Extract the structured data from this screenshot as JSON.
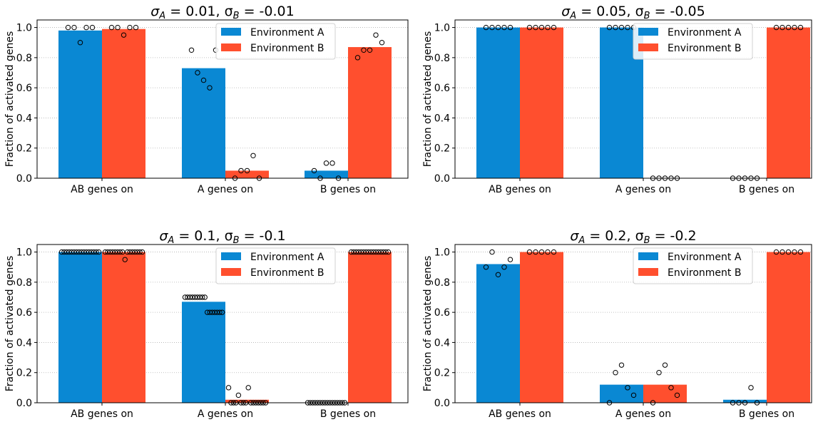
{
  "colors": {
    "env_a": "#0a88d3",
    "env_b": "#ff4f2e",
    "grid": "#b0b0b0"
  },
  "chart_data": [
    {
      "type": "bar",
      "title": {
        "main": "σ",
        "sub_a": "A",
        "mid": " = 0.01, σ",
        "sub_b": "B",
        "end": " = -0.01"
      },
      "ylabel": "Fraction of activated genes",
      "categories": [
        "AB genes on",
        "A genes on",
        "B genes on"
      ],
      "ylim": [
        0,
        1.05
      ],
      "yticks": [
        "0.0",
        "0.2",
        "0.4",
        "0.6",
        "0.8",
        "1.0"
      ],
      "grid": "horizontal-dotted",
      "legend_position": "top-center",
      "series": [
        {
          "name": "Environment A",
          "values": [
            0.98,
            0.73,
            0.05
          ],
          "points": [
            [
              1.0,
              1.0,
              0.9,
              1.0,
              1.0
            ],
            [
              0.85,
              0.7,
              0.65,
              0.6,
              0.85
            ],
            [
              0.05,
              0.0,
              0.1,
              0.1,
              0.0
            ]
          ]
        },
        {
          "name": "Environment B",
          "values": [
            0.99,
            0.05,
            0.87
          ],
          "points": [
            [
              1.0,
              1.0,
              0.95,
              1.0,
              1.0
            ],
            [
              0.0,
              0.05,
              0.05,
              0.15,
              0.0
            ],
            [
              0.8,
              0.85,
              0.85,
              0.95,
              0.9
            ]
          ]
        }
      ]
    },
    {
      "type": "bar",
      "title": {
        "main": "σ",
        "sub_a": "A",
        "mid": " = 0.05, σ",
        "sub_b": "B",
        "end": " = -0.05"
      },
      "ylabel": "Fraction of activated genes",
      "categories": [
        "AB genes on",
        "A genes on",
        "B genes on"
      ],
      "ylim": [
        0,
        1.05
      ],
      "yticks": [
        "0.0",
        "0.2",
        "0.4",
        "0.6",
        "0.8",
        "1.0"
      ],
      "grid": "horizontal-dotted",
      "legend_position": "top-right",
      "series": [
        {
          "name": "Environment A",
          "values": [
            1.0,
            1.0,
            0.0
          ],
          "points": [
            [
              1,
              1,
              1,
              1,
              1
            ],
            [
              1,
              1,
              1,
              1,
              1
            ],
            [
              0,
              0,
              0,
              0,
              0
            ]
          ]
        },
        {
          "name": "Environment B",
          "values": [
            1.0,
            0.0,
            1.0
          ],
          "points": [
            [
              1,
              1,
              1,
              1,
              1
            ],
            [
              0,
              0,
              0,
              0,
              0
            ],
            [
              1,
              1,
              1,
              1,
              1
            ]
          ]
        }
      ]
    },
    {
      "type": "bar",
      "title": {
        "main": "σ",
        "sub_a": "A",
        "mid": " = 0.1, σ",
        "sub_b": "B",
        "end": " = -0.1"
      },
      "ylabel": "Fraction of activated genes",
      "categories": [
        "AB genes on",
        "A genes on",
        "B genes on"
      ],
      "ylim": [
        0,
        1.05
      ],
      "yticks": [
        "0.0",
        "0.2",
        "0.4",
        "0.6",
        "0.8",
        "1.0"
      ],
      "grid": "horizontal-dotted",
      "legend_position": "top-center",
      "series": [
        {
          "name": "Environment A",
          "values": [
            1.0,
            0.67,
            0.0
          ],
          "points": [
            [
              1,
              1,
              1,
              1,
              1,
              1,
              1,
              1,
              1,
              1,
              1,
              1,
              1,
              1,
              1,
              1
            ],
            [
              0.7,
              0.7,
              0.7,
              0.7,
              0.7,
              0.7,
              0.7,
              0.7,
              0.7,
              0.6,
              0.6,
              0.6,
              0.6,
              0.6,
              0.6,
              0.6
            ],
            [
              0,
              0,
              0,
              0,
              0,
              0,
              0,
              0,
              0,
              0,
              0,
              0,
              0,
              0,
              0,
              0
            ]
          ]
        },
        {
          "name": "Environment B",
          "values": [
            1.0,
            0.02,
            1.0
          ],
          "points": [
            [
              1,
              1,
              1,
              1,
              1,
              1,
              1,
              1,
              0.95,
              1,
              1,
              1,
              1,
              1,
              1,
              1
            ],
            [
              0.1,
              0,
              0,
              0,
              0.05,
              0,
              0,
              0,
              0.1,
              0,
              0,
              0,
              0,
              0,
              0,
              0
            ],
            [
              1,
              1,
              1,
              1,
              1,
              1,
              1,
              1,
              1,
              1,
              1,
              1,
              1,
              1,
              1,
              1
            ]
          ]
        }
      ]
    },
    {
      "type": "bar",
      "title": {
        "main": "σ",
        "sub_a": "A",
        "mid": " = 0.2, σ",
        "sub_b": "B",
        "end": " = -0.2"
      },
      "ylabel": "Fraction of activated genes",
      "categories": [
        "AB genes on",
        "A genes on",
        "B genes on"
      ],
      "ylim": [
        0,
        1.05
      ],
      "yticks": [
        "0.0",
        "0.2",
        "0.4",
        "0.6",
        "0.8",
        "1.0"
      ],
      "grid": "horizontal-dotted",
      "legend_position": "top-right",
      "series": [
        {
          "name": "Environment A",
          "values": [
            0.92,
            0.12,
            0.02
          ],
          "points": [
            [
              0.9,
              1.0,
              0.85,
              0.9,
              0.95
            ],
            [
              0.0,
              0.2,
              0.25,
              0.1,
              0.05
            ],
            [
              0.0,
              0.0,
              0.0,
              0.1,
              0.0
            ]
          ]
        },
        {
          "name": "Environment B",
          "values": [
            1.0,
            0.12,
            1.0
          ],
          "points": [
            [
              1,
              1,
              1,
              1,
              1
            ],
            [
              0.0,
              0.2,
              0.25,
              0.1,
              0.05
            ],
            [
              1,
              1,
              1,
              1,
              1
            ]
          ]
        }
      ]
    }
  ]
}
